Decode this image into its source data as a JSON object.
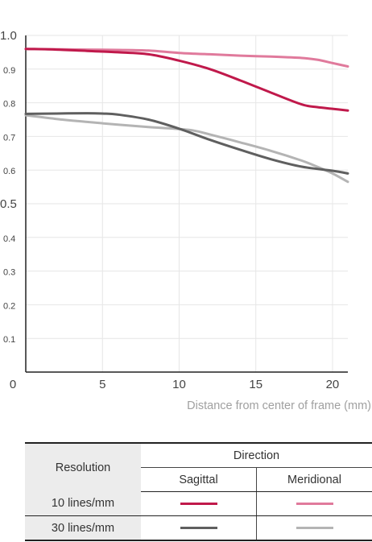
{
  "chart_data": {
    "type": "line",
    "title": "",
    "xlabel": "Distance from center of frame (mm)",
    "ylabel": "",
    "xlim": [
      0,
      21
    ],
    "ylim": [
      0,
      1.0
    ],
    "xticks": [
      "0",
      "5",
      "10",
      "15",
      "20"
    ],
    "yticks": [
      "0.1",
      "0.2",
      "0.3",
      "0.4",
      "0.5",
      "0.6",
      "0.7",
      "0.8",
      "0.9",
      "1.0"
    ],
    "grid": true,
    "series": [
      {
        "name": "10 lines/mm Sagittal",
        "color": "#c0194b",
        "x": [
          0,
          2,
          4,
          6,
          8,
          10,
          12,
          14,
          16,
          18,
          19,
          20,
          21
        ],
        "y": [
          0.96,
          0.958,
          0.954,
          0.95,
          0.944,
          0.925,
          0.9,
          0.866,
          0.83,
          0.795,
          0.787,
          0.782,
          0.777
        ]
      },
      {
        "name": "10 lines/mm Meridional",
        "color": "#e07a9c",
        "x": [
          0,
          2,
          4,
          6,
          8,
          10,
          12,
          14,
          16,
          18,
          19,
          20,
          21
        ],
        "y": [
          0.96,
          0.959,
          0.958,
          0.957,
          0.955,
          0.948,
          0.944,
          0.94,
          0.937,
          0.933,
          0.928,
          0.918,
          0.908
        ]
      },
      {
        "name": "30 lines/mm Sagittal",
        "color": "#5f5f5f",
        "x": [
          0,
          2,
          4,
          5,
          6,
          8,
          10,
          12,
          14,
          16,
          18,
          20,
          21
        ],
        "y": [
          0.767,
          0.768,
          0.769,
          0.768,
          0.765,
          0.75,
          0.723,
          0.69,
          0.66,
          0.632,
          0.61,
          0.598,
          0.59
        ]
      },
      {
        "name": "30 lines/mm Meridional",
        "color": "#b4b4b4",
        "x": [
          0,
          2,
          4,
          6,
          8,
          10,
          11,
          12,
          14,
          16,
          18,
          19,
          20,
          21
        ],
        "y": [
          0.763,
          0.752,
          0.743,
          0.735,
          0.728,
          0.722,
          0.717,
          0.706,
          0.682,
          0.657,
          0.628,
          0.61,
          0.59,
          0.565
        ]
      }
    ]
  },
  "legend_table": {
    "resolution_header": "Resolution",
    "direction_header": "Direction",
    "sagittal_header": "Sagittal",
    "meridional_header": "Meridional",
    "row1_label": "10 lines/mm",
    "row2_label": "30 lines/mm",
    "colors": {
      "r10_sagittal": "#c0194b",
      "r10_meridional": "#e07a9c",
      "r30_sagittal": "#5f5f5f",
      "r30_meridional": "#b4b4b4"
    }
  }
}
